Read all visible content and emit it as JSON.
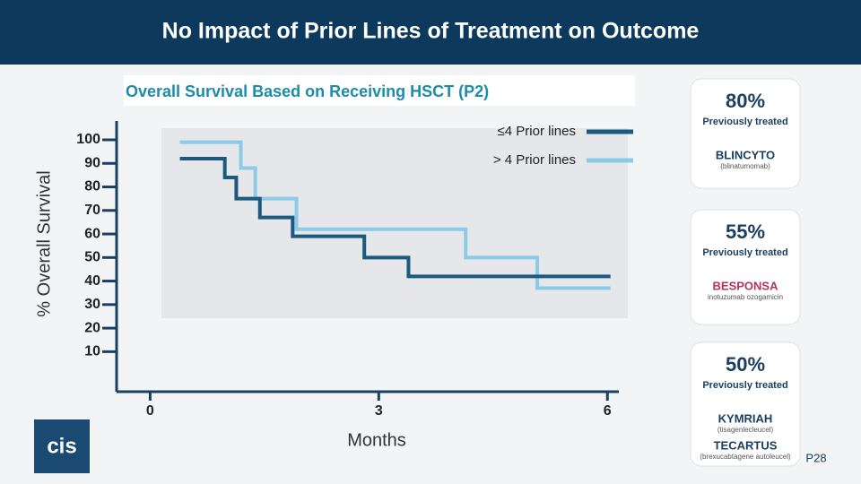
{
  "header": {
    "title": "No Impact of Prior Lines of Treatment on Outcome"
  },
  "chart_data": {
    "type": "line",
    "step": "post",
    "title": "Overall Survival Based on Receiving HSCT (P2)",
    "y_label": "% Overall Survival",
    "x_label": "Months",
    "xlim": [
      -0.44,
      6.15
    ],
    "xticks": [
      0,
      3,
      6
    ],
    "ylim": [
      -7,
      108
    ],
    "yticks": [
      10,
      20,
      30,
      40,
      50,
      60,
      70,
      80,
      90,
      100
    ],
    "series": [
      {
        "name": "≤4 Prior lines",
        "color": "#1b5a7e",
        "x": [
          0.39,
          0.98,
          1.13,
          1.44,
          1.87,
          2.81,
          3.39,
          6.04
        ],
        "values": [
          92,
          84,
          75,
          67,
          59,
          50,
          42,
          42
        ]
      },
      {
        "name": "> 4 Prior lines",
        "color": "#8ccbe8",
        "x": [
          0.39,
          1.19,
          1.38,
          1.92,
          4.14,
          5.08,
          6.04
        ],
        "values": [
          99,
          88,
          75,
          62,
          50,
          37,
          37
        ]
      }
    ]
  },
  "cards": [
    {
      "percent": "80%",
      "text": "Previously treated",
      "drugs": [
        {
          "name": "BLINCYTO",
          "generic": "(blinatumomab)"
        }
      ]
    },
    {
      "percent": "55%",
      "text": "Previously treated",
      "drugs": [
        {
          "name": "BESPONSA",
          "generic": "inotuzumab ozogamicin"
        }
      ]
    },
    {
      "percent": "50%",
      "text": "Previously treated",
      "drugs": [
        {
          "name": "KYMRIAH",
          "generic": "(tisagenlecleucel)"
        },
        {
          "name": "TECARTUS",
          "generic": "(brexucabtagene autoleucel)"
        }
      ]
    }
  ],
  "logo": "cis",
  "page_number": "P28"
}
